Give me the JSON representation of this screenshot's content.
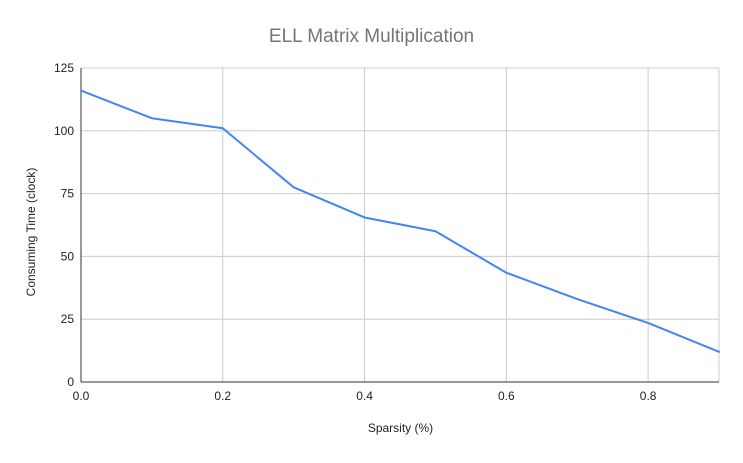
{
  "chart_data": {
    "type": "line",
    "title": "ELL Matrix Multiplication",
    "xlabel": "Sparsity (%)",
    "ylabel": "Consuming Time (clock)",
    "xlim": [
      0,
      0.9
    ],
    "ylim": [
      0,
      125
    ],
    "x_ticks": [
      "0.0",
      "0.2",
      "0.4",
      "0.6",
      "0.8"
    ],
    "y_ticks": [
      "0",
      "25",
      "50",
      "75",
      "100",
      "125"
    ],
    "grid": true,
    "legend": "none",
    "colors": {
      "line": "#4285f4",
      "grid": "#cccccc",
      "axis": "#333333",
      "title": "#757575",
      "text": "#222222"
    },
    "series": [
      {
        "x": [
          0.0,
          0.1,
          0.2,
          0.3,
          0.4,
          0.5,
          0.6,
          0.7,
          0.8,
          0.9
        ],
        "y": [
          116,
          105,
          101,
          77.5,
          65.5,
          60,
          43.5,
          33,
          23.5,
          12
        ]
      }
    ]
  }
}
